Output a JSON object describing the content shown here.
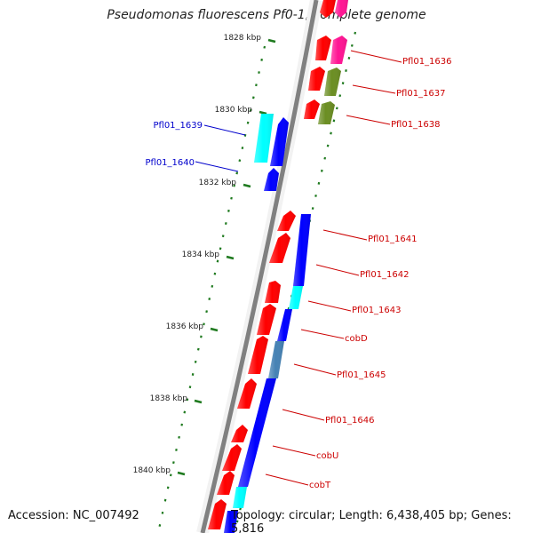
{
  "title": "Pseudomonas fluorescens Pf0-1, complete genome",
  "footer": {
    "accession": "Accession: NC_007492",
    "stats": "Topology: circular; Length: 6,438,405 bp; Genes: 5,816"
  },
  "colors": {
    "backbone": "#808080",
    "tick": "#1f7a1f",
    "label_right": "#cc0000",
    "label_left": "#0000cc",
    "red": "#ff0000",
    "blue": "#0000ff",
    "cyan": "#00ffff",
    "magenta": "#ff1493",
    "olive": "#6b8e23",
    "steel": "#4682b4"
  },
  "ruler": [
    {
      "label": "1828 kbp"
    },
    {
      "label": "1830 kbp"
    },
    {
      "label": "1832 kbp"
    },
    {
      "label": "1834 kbp"
    },
    {
      "label": "1836 kbp"
    },
    {
      "label": "1838 kbp"
    },
    {
      "label": "1840 kbp"
    }
  ],
  "gene_labels": [
    {
      "text": "Pfl01_1636",
      "side": "right"
    },
    {
      "text": "Pfl01_1637",
      "side": "right"
    },
    {
      "text": "Pfl01_1638",
      "side": "right"
    },
    {
      "text": "Pfl01_1639",
      "side": "left"
    },
    {
      "text": "Pfl01_1640",
      "side": "left"
    },
    {
      "text": "Pfl01_1641",
      "side": "right"
    },
    {
      "text": "Pfl01_1642",
      "side": "right"
    },
    {
      "text": "Pfl01_1643",
      "side": "right"
    },
    {
      "text": "cobD",
      "side": "right"
    },
    {
      "text": "Pfl01_1645",
      "side": "right"
    },
    {
      "text": "Pfl01_1646",
      "side": "right"
    },
    {
      "text": "cobU",
      "side": "right"
    },
    {
      "text": "cobT",
      "side": "right"
    }
  ]
}
